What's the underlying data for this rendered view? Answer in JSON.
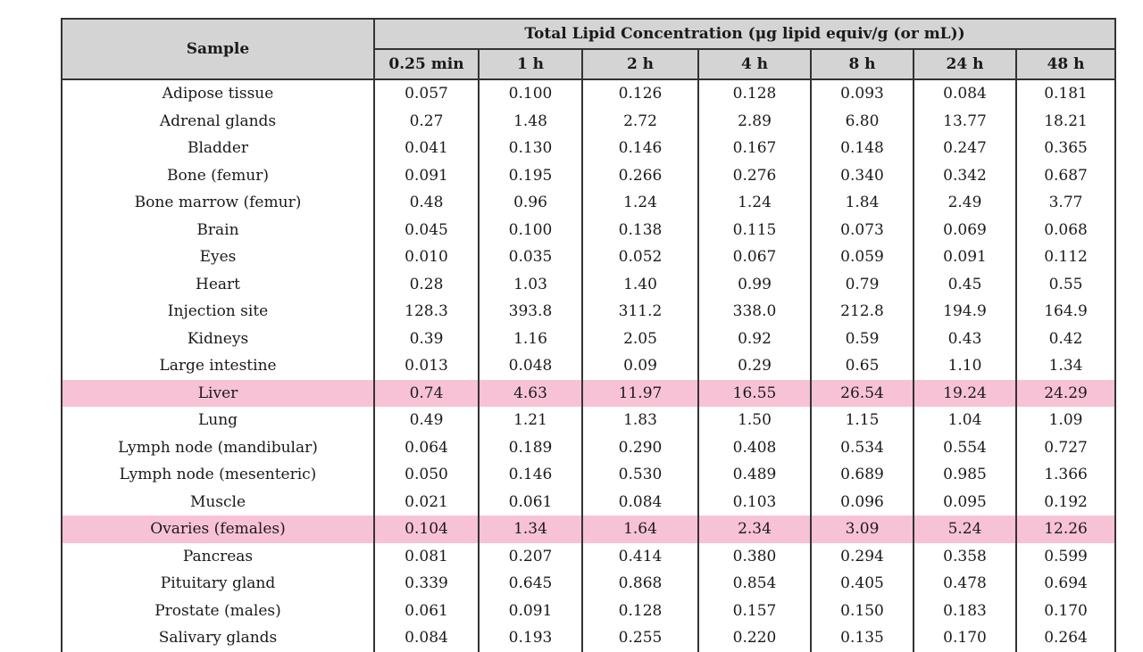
{
  "table": {
    "header": {
      "sample": "Sample",
      "group": "Total Lipid Concentration (μg lipid equiv/g (or mL))",
      "times": [
        "0.25 min",
        "1 h",
        "2 h",
        "4 h",
        "8 h",
        "24 h",
        "48 h"
      ]
    },
    "rows": [
      [
        "Adipose tissue",
        "0.057",
        "0.100",
        "0.126",
        "0.128",
        "0.093",
        "0.084",
        "0.181"
      ],
      [
        "Adrenal glands",
        "0.27",
        "1.48",
        "2.72",
        "2.89",
        "6.80",
        "13.77",
        "18.21"
      ],
      [
        "Bladder",
        "0.041",
        "0.130",
        "0.146",
        "0.167",
        "0.148",
        "0.247",
        "0.365"
      ],
      [
        "Bone (femur)",
        "0.091",
        "0.195",
        "0.266",
        "0.276",
        "0.340",
        "0.342",
        "0.687"
      ],
      [
        "Bone marrow (femur)",
        "0.48",
        "0.96",
        "1.24",
        "1.24",
        "1.84",
        "2.49",
        "3.77"
      ],
      [
        "Brain",
        "0.045",
        "0.100",
        "0.138",
        "0.115",
        "0.073",
        "0.069",
        "0.068"
      ],
      [
        "Eyes",
        "0.010",
        "0.035",
        "0.052",
        "0.067",
        "0.059",
        "0.091",
        "0.112"
      ],
      [
        "Heart",
        "0.28",
        "1.03",
        "1.40",
        "0.99",
        "0.79",
        "0.45",
        "0.55"
      ],
      [
        "Injection site",
        "128.3",
        "393.8",
        "311.2",
        "338.0",
        "212.8",
        "194.9",
        "164.9"
      ],
      [
        "Kidneys",
        "0.39",
        "1.16",
        "2.05",
        "0.92",
        "0.59",
        "0.43",
        "0.42"
      ],
      [
        "Large intestine",
        "0.013",
        "0.048",
        "0.09",
        "0.29",
        "0.65",
        "1.10",
        "1.34"
      ],
      [
        "Liver",
        "0.74",
        "4.63",
        "11.97",
        "16.55",
        "26.54",
        "19.24",
        "24.29"
      ],
      [
        "Lung",
        "0.49",
        "1.21",
        "1.83",
        "1.50",
        "1.15",
        "1.04",
        "1.09"
      ],
      [
        "Lymph node (mandibular)",
        "0.064",
        "0.189",
        "0.290",
        "0.408",
        "0.534",
        "0.554",
        "0.727"
      ],
      [
        "Lymph node (mesenteric)",
        "0.050",
        "0.146",
        "0.530",
        "0.489",
        "0.689",
        "0.985",
        "1.366"
      ],
      [
        "Muscle",
        "0.021",
        "0.061",
        "0.084",
        "0.103",
        "0.096",
        "0.095",
        "0.192"
      ],
      [
        "Ovaries (females)",
        "0.104",
        "1.34",
        "1.64",
        "2.34",
        "3.09",
        "5.24",
        "12.26"
      ],
      [
        "Pancreas",
        "0.081",
        "0.207",
        "0.414",
        "0.380",
        "0.294",
        "0.358",
        "0.599"
      ],
      [
        "Pituitary gland",
        "0.339",
        "0.645",
        "0.868",
        "0.854",
        "0.405",
        "0.478",
        "0.694"
      ],
      [
        "Prostate (males)",
        "0.061",
        "0.091",
        "0.128",
        "0.157",
        "0.150",
        "0.183",
        "0.170"
      ],
      [
        "Salivary glands",
        "0.084",
        "0.193",
        "0.255",
        "0.220",
        "0.135",
        "0.170",
        "0.264"
      ]
    ]
  }
}
